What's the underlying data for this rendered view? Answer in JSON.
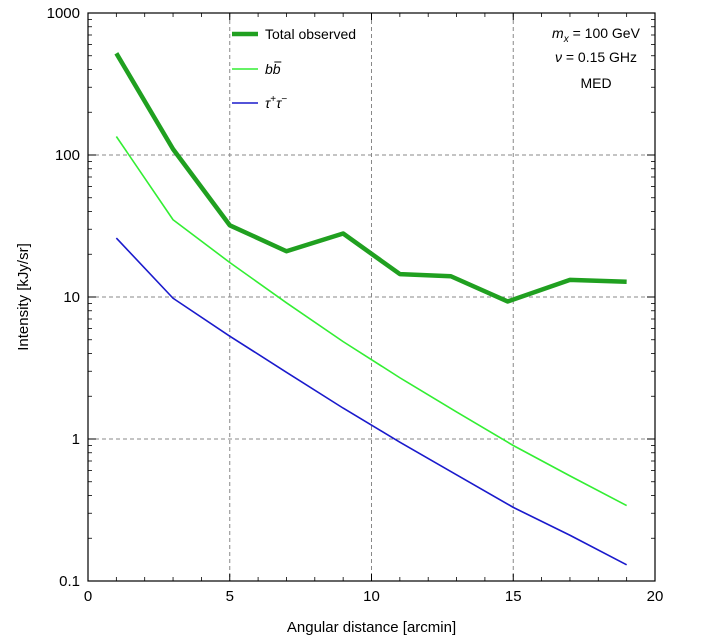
{
  "chart_data": {
    "type": "line",
    "xlabel": "Angular distance [arcmin]",
    "ylabel": "Intensity [kJy/sr]",
    "xlim": [
      0,
      20
    ],
    "ylim": [
      0.1,
      1000
    ],
    "yscale": "log",
    "grid": true,
    "x_ticks": [
      "0",
      "5",
      "10",
      "15",
      "20"
    ],
    "y_ticks": [
      "0.1",
      "1",
      "10",
      "100",
      "1000"
    ],
    "legend_position": "top",
    "series": [
      {
        "name": "Total observed",
        "color": "#20a020",
        "style": "thick",
        "x": [
          1,
          3,
          5,
          7,
          9,
          11,
          12.8,
          14.8,
          17,
          19
        ],
        "y": [
          520,
          110,
          32,
          21,
          28,
          14.5,
          14,
          9.3,
          13.2,
          12.8
        ]
      },
      {
        "name": "bb̄",
        "color": "#33ee33",
        "style": "thin",
        "x": [
          1,
          3,
          5,
          7,
          9,
          11,
          13,
          15,
          17,
          19
        ],
        "y": [
          135,
          35,
          17.5,
          9.1,
          4.85,
          2.7,
          1.55,
          0.9,
          0.55,
          0.34
        ]
      },
      {
        "name": "τ⁺τ⁻",
        "color": "#1a1acc",
        "style": "thin",
        "x": [
          1,
          3,
          5,
          7,
          9,
          11,
          13,
          15,
          17,
          19
        ],
        "y": [
          26,
          9.8,
          5.3,
          2.95,
          1.65,
          0.95,
          0.56,
          0.33,
          0.21,
          0.13
        ]
      }
    ],
    "annotations": {
      "mx_symbol": "m",
      "mx_sub": "x",
      "mx_value": " = 100 GeV",
      "nu_symbol": "ν",
      "nu_value": " = 0.15 GHz",
      "profile": "MED"
    },
    "legend_labels": {
      "total": "Total observed",
      "bb_b1": "b",
      "bb_b2": "b",
      "tau1": "τ",
      "tau_sup1": "+",
      "tau2": "τ",
      "tau_sup2": "−"
    }
  }
}
